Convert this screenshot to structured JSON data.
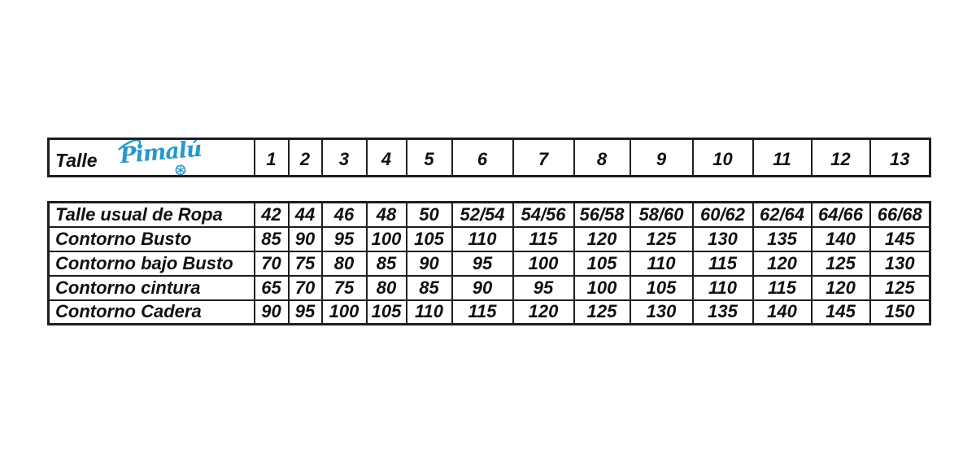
{
  "brand": {
    "name": "Pimalú",
    "logo_color": "#2598cc",
    "trademark_symbol": "circled-asterisk"
  },
  "colors": {
    "background": "#ffffff",
    "border": "#1e1e1e",
    "text": "#101010"
  },
  "chart_data": {
    "type": "table",
    "columns": [
      "Talle",
      "1",
      "2",
      "3",
      "4",
      "5",
      "6",
      "7",
      "8",
      "9",
      "10",
      "11",
      "12",
      "13"
    ],
    "rows": [
      {
        "label": "Talle usual de Ropa",
        "values": [
          "42",
          "44",
          "46",
          "48",
          "50",
          "52/54",
          "54/56",
          "56/58",
          "58/60",
          "60/62",
          "62/64",
          "64/66",
          "66/68"
        ]
      },
      {
        "label": "Contorno Busto",
        "values": [
          "85",
          "90",
          "95",
          "100",
          "105",
          "110",
          "115",
          "120",
          "125",
          "130",
          "135",
          "140",
          "145"
        ]
      },
      {
        "label": "Contorno bajo Busto",
        "values": [
          "70",
          "75",
          "80",
          "85",
          "90",
          "95",
          "100",
          "105",
          "110",
          "115",
          "120",
          "125",
          "130"
        ]
      },
      {
        "label": "Contorno cintura",
        "values": [
          "65",
          "70",
          "75",
          "80",
          "85",
          "90",
          "95",
          "100",
          "105",
          "110",
          "115",
          "120",
          "125"
        ]
      },
      {
        "label": "Contorno Cadera",
        "values": [
          "90",
          "95",
          "100",
          "105",
          "110",
          "115",
          "120",
          "125",
          "130",
          "135",
          "140",
          "145",
          "150"
        ]
      }
    ]
  }
}
